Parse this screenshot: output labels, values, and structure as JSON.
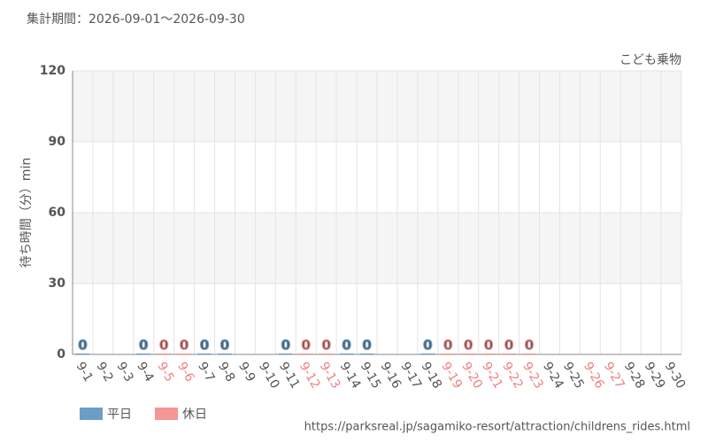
{
  "chart_data": {
    "type": "bar",
    "title": "集計期間：2026-09-01～2026-09-30",
    "subtitle": "こども乗物",
    "y_label": "待ち時間（分）min",
    "source": "https://parksreal.jp/sagamiko-resort/attraction/childrens_rides.html",
    "categories": [
      "9-1",
      "9-2",
      "9-3",
      "9-4",
      "9-5",
      "9-6",
      "9-7",
      "9-8",
      "9-9",
      "9-10",
      "9-11",
      "9-12",
      "9-13",
      "9-14",
      "9-15",
      "9-16",
      "9-17",
      "9-18",
      "9-19",
      "9-20",
      "9-21",
      "9-22",
      "9-23",
      "9-24",
      "9-25",
      "9-26",
      "9-27",
      "9-28",
      "9-29",
      "9-30"
    ],
    "category_colors": [
      "#555",
      "#555",
      "#555",
      "#555",
      "#f08080",
      "#f08080",
      "#555",
      "#555",
      "#555",
      "#555",
      "#555",
      "#f08080",
      "#f08080",
      "#555",
      "#555",
      "#555",
      "#555",
      "#555",
      "#f08080",
      "#f08080",
      "#f08080",
      "#f08080",
      "#f08080",
      "#555",
      "#555",
      "#f08080",
      "#f08080",
      "#555",
      "#555",
      "#555"
    ],
    "series": [
      {
        "name": "平日",
        "color": "#6a9ec6",
        "values": [
          0,
          null,
          null,
          0,
          null,
          null,
          0,
          0,
          null,
          null,
          0,
          null,
          null,
          0,
          0,
          null,
          null,
          0,
          null,
          null,
          null,
          null,
          null,
          null,
          null,
          null,
          null,
          null,
          null,
          null
        ]
      },
      {
        "name": "休日",
        "color": "#f59595",
        "values": [
          null,
          null,
          null,
          null,
          0,
          0,
          null,
          null,
          null,
          null,
          null,
          0,
          0,
          null,
          null,
          null,
          null,
          null,
          0,
          0,
          0,
          0,
          0,
          null,
          null,
          null,
          null,
          null,
          null,
          null
        ]
      }
    ],
    "ylim": [
      0,
      120
    ],
    "yticks": [
      0,
      30,
      60,
      90,
      120
    ],
    "grid": true
  }
}
